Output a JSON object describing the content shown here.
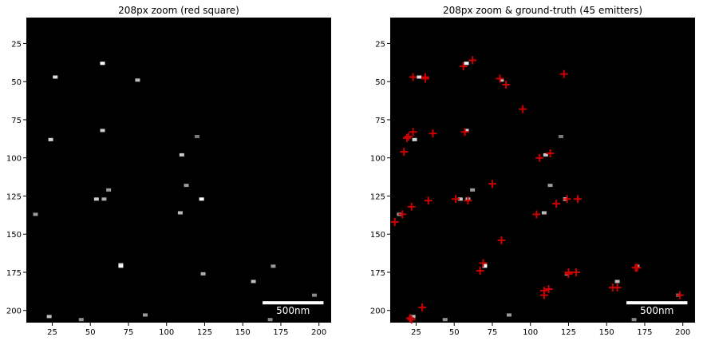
{
  "colors": {
    "background": "#000000",
    "spot": "#ffffff",
    "marker": "#cc0000",
    "scalebar": "#ffffff"
  },
  "chart_data": [
    {
      "type": "scatter",
      "title": "208px zoom (red square)",
      "xlim": [
        8,
        208
      ],
      "ylim": [
        208,
        8
      ],
      "xticks": [
        "25",
        "50",
        "75",
        "100",
        "125",
        "150",
        "175",
        "200"
      ],
      "yticks": [
        "25",
        "50",
        "75",
        "100",
        "125",
        "150",
        "175",
        "200"
      ],
      "spots": {
        "x": [
          58,
          27,
          81,
          24,
          54,
          62,
          70,
          123,
          110,
          109,
          59,
          58,
          14,
          23,
          113,
          124,
          157,
          170,
          197,
          44,
          86,
          168,
          70,
          120
        ],
        "y": [
          38,
          47,
          49,
          88,
          127,
          121,
          171,
          127,
          98,
          136,
          127,
          82,
          137,
          204,
          118,
          176,
          181,
          171,
          190,
          206,
          203,
          206,
          170,
          86
        ],
        "intensity": [
          1.0,
          0.8,
          0.6,
          0.75,
          0.7,
          0.4,
          0.9,
          1.0,
          0.7,
          0.6,
          0.5,
          0.7,
          0.4,
          0.6,
          0.4,
          0.5,
          0.6,
          0.4,
          0.3,
          0.35,
          0.4,
          0.3,
          0.7,
          0.2
        ]
      },
      "scalebar": {
        "label": "500nm",
        "x_start": 163,
        "x_end": 203,
        "y": 195
      }
    },
    {
      "type": "scatter",
      "title": "208px zoom & ground-truth (45 emitters)",
      "xlim": [
        8,
        208
      ],
      "ylim": [
        208,
        8
      ],
      "xticks": [
        "25",
        "50",
        "75",
        "100",
        "125",
        "150",
        "175",
        "200"
      ],
      "yticks": [
        "25",
        "50",
        "75",
        "100",
        "125",
        "150",
        "175",
        "200"
      ],
      "spots": {
        "x": [
          58,
          27,
          81,
          24,
          54,
          62,
          70,
          123,
          110,
          109,
          59,
          58,
          14,
          23,
          113,
          124,
          157,
          170,
          197,
          44,
          86,
          168,
          70,
          120
        ],
        "y": [
          38,
          47,
          49,
          88,
          127,
          121,
          171,
          127,
          98,
          136,
          127,
          82,
          137,
          204,
          118,
          176,
          181,
          171,
          190,
          206,
          203,
          206,
          170,
          86
        ],
        "intensity": [
          1.0,
          0.8,
          0.6,
          0.75,
          0.7,
          0.4,
          0.9,
          1.0,
          0.7,
          0.6,
          0.5,
          0.7,
          0.4,
          0.6,
          0.4,
          0.5,
          0.6,
          0.4,
          0.3,
          0.35,
          0.4,
          0.3,
          0.7,
          0.2
        ]
      },
      "emitters": {
        "x": [
          62,
          56,
          23,
          31,
          31,
          122,
          80,
          84,
          95,
          23,
          20,
          36,
          57,
          17,
          106,
          113,
          75,
          104,
          117,
          131,
          124,
          51,
          59,
          33,
          22,
          16,
          11,
          81,
          69,
          67,
          125,
          130,
          125,
          109,
          112,
          109,
          154,
          157,
          169,
          170,
          198,
          29,
          22,
          21,
          19
        ],
        "y": [
          36,
          40,
          47,
          47,
          48,
          45,
          48,
          52,
          68,
          83,
          86,
          84,
          83,
          96,
          100,
          97,
          117,
          137,
          130,
          127,
          127,
          127,
          128,
          128,
          132,
          137,
          142,
          154,
          169,
          174,
          176,
          175,
          175,
          187,
          186,
          190,
          185,
          185,
          172,
          172,
          190,
          198,
          206,
          205,
          87
        ]
      },
      "scalebar": {
        "label": "500nm",
        "x_start": 163,
        "x_end": 203,
        "y": 195
      }
    }
  ]
}
